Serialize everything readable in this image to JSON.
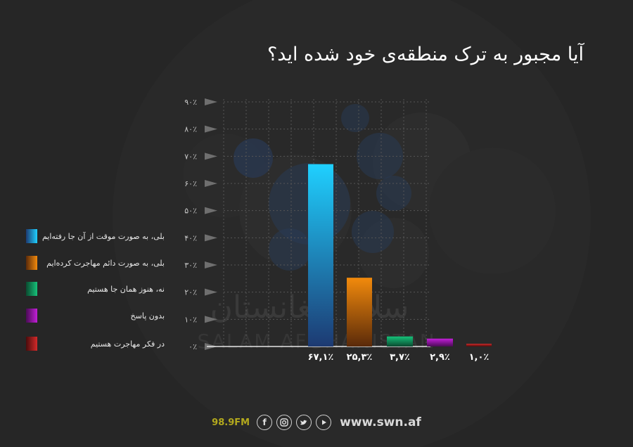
{
  "title": "آیا مجبور به ترک منطقه‌ی خود شده اید؟",
  "watermark": {
    "arabic": "سلام افغانستان",
    "latin": "SALAM AFGHANISTAN"
  },
  "colors": {
    "blue": "#1fd0ff",
    "orange": "#f28a0c",
    "green": "#16c27a",
    "purple": "#c21fd8",
    "red": "#d42a2a"
  },
  "chart_data": {
    "type": "bar",
    "categories": [
      "بلی، به صورت موقت از آن جا رفته‌ایم",
      "بلی، به صورت دائم مهاجرت کرده‌ایم",
      "نه، هنوز همان جا هستیم",
      "بدون پاسخ",
      "در فکر مهاجرت هستیم"
    ],
    "values": [
      67.1,
      25.3,
      3.7,
      2.9,
      1.0
    ],
    "value_labels": [
      "۶۷,۱٪",
      "۲۵,۳٪",
      "۳,۷٪",
      "۲,۹٪",
      "۱,۰٪"
    ],
    "ylim": [
      0,
      90
    ],
    "yticks": [
      0,
      10,
      20,
      30,
      40,
      50,
      60,
      70,
      80,
      90
    ],
    "ytick_labels": [
      "۰٪",
      "۱۰٪",
      "۲۰٪",
      "۳۰٪",
      "۴۰٪",
      "۵۰٪",
      "۶۰٪",
      "۷۰٪",
      "۸۰٪",
      "۹۰٪"
    ],
    "grid": true,
    "legend_position": "left"
  },
  "footer": {
    "frequency": "98.9FM",
    "icons": [
      "facebook-icon",
      "instagram-icon",
      "twitter-icon",
      "youtube-icon"
    ],
    "website": "www.swn.af"
  }
}
